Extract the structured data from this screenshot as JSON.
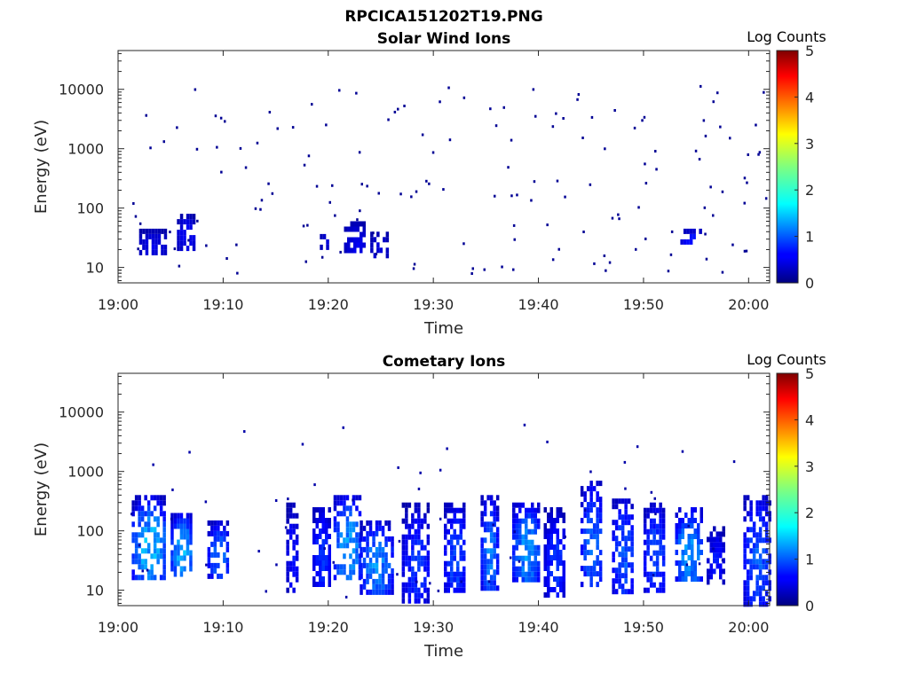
{
  "figure_title": "RPCICA151202T19.PNG",
  "chart_data": [
    {
      "type": "heatmap",
      "title": "Solar Wind Ions",
      "xlabel": "Time",
      "ylabel": "Energy (eV)",
      "x_ticks": [
        "19:00",
        "19:10",
        "19:20",
        "19:30",
        "19:40",
        "19:50",
        "20:00"
      ],
      "x_range_minutes": [
        0,
        62
      ],
      "y_ticks": [
        "10",
        "100",
        "1000",
        "10000"
      ],
      "y_scale": "log",
      "ylim": [
        5.5,
        45000
      ],
      "colorbar": {
        "label": "Log Counts",
        "ticks": [
          "0",
          "1",
          "2",
          "3",
          "4",
          "5"
        ],
        "range": [
          0,
          5
        ],
        "colormap": "jet"
      },
      "blobs": [
        {
          "t": [
            2.0,
            4.5
          ],
          "e": [
            18,
            45
          ],
          "log_counts": [
            0.2,
            0.6
          ]
        },
        {
          "t": [
            5.6,
            7.2
          ],
          "e": [
            22,
            80
          ],
          "log_counts": [
            0.2,
            0.7
          ]
        },
        {
          "t": [
            19.2,
            20.0
          ],
          "e": [
            22,
            45
          ],
          "log_counts": [
            0.2,
            0.5
          ]
        },
        {
          "t": [
            21.5,
            23.5
          ],
          "e": [
            18,
            60
          ],
          "log_counts": [
            0.2,
            0.6
          ]
        },
        {
          "t": [
            24.0,
            25.5
          ],
          "e": [
            15,
            40
          ],
          "log_counts": [
            0.2,
            0.5
          ]
        },
        {
          "t": [
            53.5,
            55.5
          ],
          "e": [
            28,
            45
          ],
          "log_counts": [
            0.3,
            0.8
          ]
        }
      ],
      "sparse_points": {
        "t_range": [
          1,
          62
        ],
        "e_range": [
          8,
          12000
        ],
        "log_counts": 0.1
      }
    },
    {
      "type": "heatmap",
      "title": "Cometary Ions",
      "xlabel": "Time",
      "ylabel": "Energy (eV)",
      "x_ticks": [
        "19:00",
        "19:10",
        "19:20",
        "19:30",
        "19:40",
        "19:50",
        "20:00"
      ],
      "x_range_minutes": [
        0,
        62
      ],
      "y_ticks": [
        "10",
        "100",
        "1000",
        "10000"
      ],
      "y_scale": "log",
      "ylim": [
        5.5,
        45000
      ],
      "colorbar": {
        "label": "Log Counts",
        "ticks": [
          "0",
          "1",
          "2",
          "3",
          "4",
          "5"
        ],
        "range": [
          0,
          5
        ],
        "colormap": "jet"
      },
      "blobs": [
        {
          "t": [
            1.3,
            4.5
          ],
          "e": [
            15,
            400
          ],
          "log_counts": [
            0.3,
            1.8
          ]
        },
        {
          "t": [
            5.0,
            7.0
          ],
          "e": [
            18,
            200
          ],
          "log_counts": [
            0.4,
            1.7
          ]
        },
        {
          "t": [
            8.5,
            10.5
          ],
          "e": [
            18,
            150
          ],
          "log_counts": [
            0.3,
            1.3
          ]
        },
        {
          "t": [
            16.0,
            17.0
          ],
          "e": [
            10,
            300
          ],
          "log_counts": [
            0.2,
            0.8
          ]
        },
        {
          "t": [
            18.5,
            20.0
          ],
          "e": [
            12,
            250
          ],
          "log_counts": [
            0.3,
            1.0
          ]
        },
        {
          "t": [
            20.5,
            23.0
          ],
          "e": [
            15,
            400
          ],
          "log_counts": [
            0.4,
            1.6
          ]
        },
        {
          "t": [
            23.0,
            26.0
          ],
          "e": [
            10,
            150
          ],
          "log_counts": [
            0.3,
            1.5
          ]
        },
        {
          "t": [
            27.0,
            29.5
          ],
          "e": [
            6,
            300
          ],
          "log_counts": [
            0.2,
            1.0
          ]
        },
        {
          "t": [
            31.0,
            33.0
          ],
          "e": [
            10,
            300
          ],
          "log_counts": [
            0.3,
            1.1
          ]
        },
        {
          "t": [
            34.5,
            36.0
          ],
          "e": [
            10,
            400
          ],
          "log_counts": [
            0.3,
            1.4
          ]
        },
        {
          "t": [
            37.5,
            40.0
          ],
          "e": [
            15,
            300
          ],
          "log_counts": [
            0.4,
            1.5
          ]
        },
        {
          "t": [
            40.5,
            42.5
          ],
          "e": [
            8,
            250
          ],
          "log_counts": [
            0.2,
            1.0
          ]
        },
        {
          "t": [
            44.0,
            46.0
          ],
          "e": [
            12,
            700
          ],
          "log_counts": [
            0.3,
            1.3
          ]
        },
        {
          "t": [
            47.0,
            49.0
          ],
          "e": [
            10,
            350
          ],
          "log_counts": [
            0.3,
            1.2
          ]
        },
        {
          "t": [
            50.0,
            52.0
          ],
          "e": [
            10,
            300
          ],
          "log_counts": [
            0.3,
            1.1
          ]
        },
        {
          "t": [
            53.0,
            55.5
          ],
          "e": [
            15,
            250
          ],
          "log_counts": [
            0.4,
            1.6
          ]
        },
        {
          "t": [
            56.0,
            57.5
          ],
          "e": [
            15,
            120
          ],
          "log_counts": [
            0.2,
            0.8
          ]
        },
        {
          "t": [
            59.5,
            62.0
          ],
          "e": [
            6,
            400
          ],
          "log_counts": [
            0.3,
            1.2
          ]
        }
      ],
      "sparse_points": {
        "t_range": [
          1,
          62
        ],
        "e_range": [
          8,
          8000
        ],
        "log_counts": 0.2
      }
    }
  ]
}
